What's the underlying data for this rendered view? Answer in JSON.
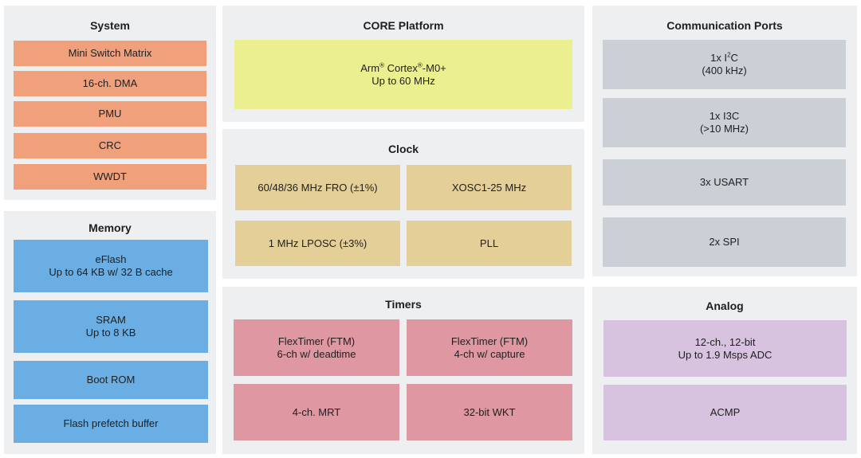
{
  "system": {
    "title": "System",
    "items": [
      "Mini Switch Matrix",
      "16-ch. DMA",
      "PMU",
      "CRC",
      "WWDT"
    ]
  },
  "memory": {
    "title": "Memory",
    "items": [
      {
        "line1": "eFlash",
        "line2": "Up to 64 KB w/ 32 B cache"
      },
      {
        "line1": "SRAM",
        "line2": "Up to 8 KB"
      },
      {
        "line1": "Boot ROM",
        "line2": ""
      },
      {
        "line1": "Flash prefetch buffer",
        "line2": ""
      }
    ]
  },
  "core": {
    "title": "CORE Platform",
    "cpu_a": "Arm",
    "cpu_reg": "®",
    "cpu_b": " Cortex",
    "cpu_c": "-M0+",
    "cpu_freq": "Up to 60 MHz"
  },
  "clock": {
    "title": "Clock",
    "items": [
      "60/48/36 MHz FRO (±1%)",
      "XOSC1-25 MHz",
      "1 MHz LPOSC (±3%)",
      "PLL"
    ]
  },
  "timers": {
    "title": "Timers",
    "items": [
      {
        "line1": "FlexTimer (FTM)",
        "line2": "6-ch w/ deadtime"
      },
      {
        "line1": "FlexTimer (FTM)",
        "line2": "4-ch w/ capture"
      },
      {
        "line1": "4-ch. MRT",
        "line2": ""
      },
      {
        "line1": "32-bit WKT",
        "line2": ""
      }
    ]
  },
  "comm": {
    "title": "Communication Ports",
    "i2c_a": "1x I",
    "i2c_sup": "2",
    "i2c_b": "C",
    "i2c_speed": "(400 kHz)",
    "i3c": "1x I3C",
    "i3c_speed": "(>10 MHz)",
    "usart": "3x USART",
    "spi": "2x SPI"
  },
  "analog": {
    "title": "Analog",
    "items": [
      {
        "line1": "12-ch., 12-bit",
        "line2": "Up to 1.9 Msps ADC"
      },
      {
        "line1": "ACMP",
        "line2": ""
      }
    ]
  }
}
